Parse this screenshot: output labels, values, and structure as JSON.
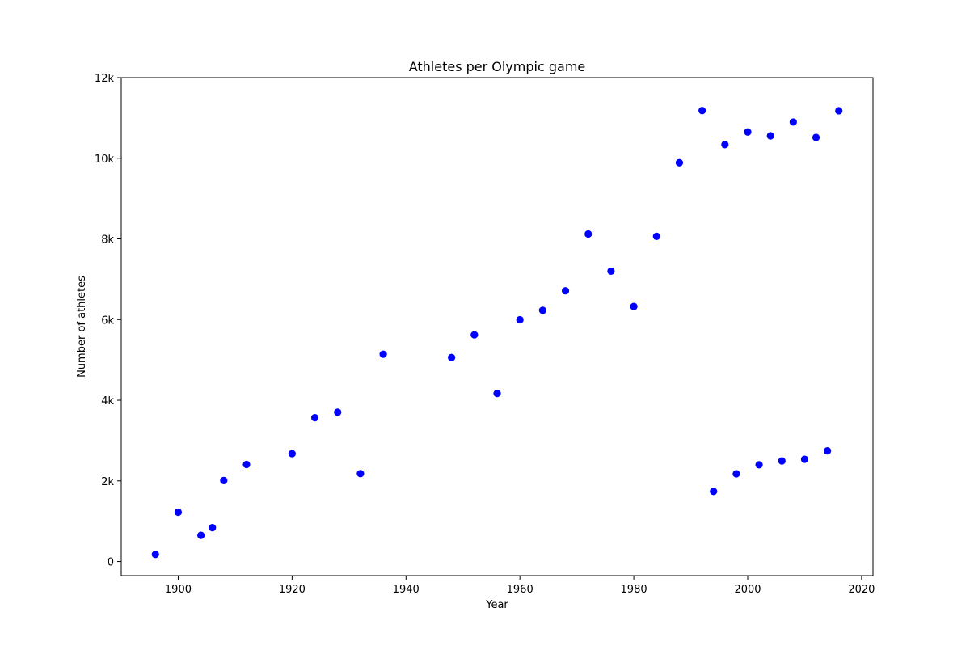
{
  "chart_data": {
    "type": "scatter",
    "title": "Athletes per Olympic game",
    "xlabel": "Year",
    "ylabel": "Number of athletes",
    "xlim": [
      1890,
      2022
    ],
    "ylim": [
      -350,
      12000
    ],
    "xticks": [
      1900,
      1920,
      1940,
      1960,
      1980,
      2000,
      2020
    ],
    "xtick_labels": [
      "1900",
      "1920",
      "1940",
      "1960",
      "1980",
      "2000",
      "2020"
    ],
    "yticks": [
      0,
      2000,
      4000,
      6000,
      8000,
      10000,
      12000
    ],
    "ytick_labels": [
      "0",
      "2k",
      "4k",
      "6k",
      "8k",
      "10k",
      "12k"
    ],
    "grid": false,
    "marker_color": "#0000ff",
    "series": [
      {
        "points": [
          {
            "x": 1896,
            "y": 176
          },
          {
            "x": 1900,
            "y": 1224
          },
          {
            "x": 1904,
            "y": 650
          },
          {
            "x": 1906,
            "y": 841
          },
          {
            "x": 1908,
            "y": 2008
          },
          {
            "x": 1912,
            "y": 2407
          },
          {
            "x": 1920,
            "y": 2676
          },
          {
            "x": 1924,
            "y": 3567
          },
          {
            "x": 1928,
            "y": 3703
          },
          {
            "x": 1932,
            "y": 2180
          },
          {
            "x": 1936,
            "y": 5140
          },
          {
            "x": 1948,
            "y": 5059
          },
          {
            "x": 1952,
            "y": 5621
          },
          {
            "x": 1956,
            "y": 4169
          },
          {
            "x": 1960,
            "y": 5996
          },
          {
            "x": 1964,
            "y": 6229
          },
          {
            "x": 1968,
            "y": 6713
          },
          {
            "x": 1972,
            "y": 8121
          },
          {
            "x": 1976,
            "y": 7200
          },
          {
            "x": 1980,
            "y": 6323
          },
          {
            "x": 1984,
            "y": 8063
          },
          {
            "x": 1988,
            "y": 9890
          },
          {
            "x": 1992,
            "y": 11183
          },
          {
            "x": 1994,
            "y": 1739
          },
          {
            "x": 1996,
            "y": 10339
          },
          {
            "x": 1998,
            "y": 2176
          },
          {
            "x": 2000,
            "y": 10651
          },
          {
            "x": 2002,
            "y": 2399
          },
          {
            "x": 2004,
            "y": 10557
          },
          {
            "x": 2006,
            "y": 2494
          },
          {
            "x": 2008,
            "y": 10899
          },
          {
            "x": 2010,
            "y": 2536
          },
          {
            "x": 2012,
            "y": 10517
          },
          {
            "x": 2014,
            "y": 2745
          },
          {
            "x": 2016,
            "y": 11179
          }
        ]
      }
    ]
  }
}
